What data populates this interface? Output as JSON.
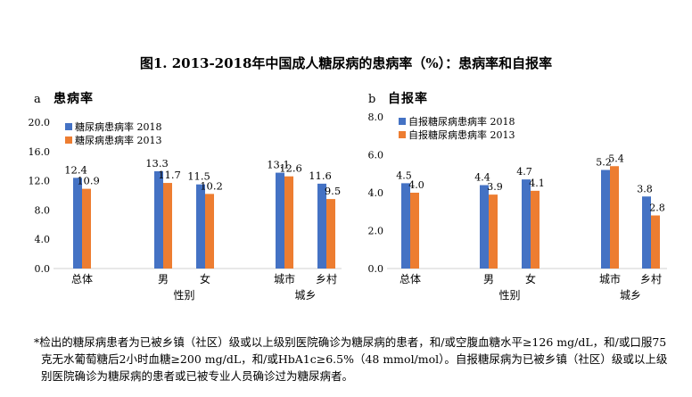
{
  "title": "图1. 2013-2018年中国成人糖尿病的患病率（%）：患病率和自报率",
  "footnote": "*检出的糖尿病患者为已被乡镇（社区）级或以上级别医院确诊为糖尿病的患者，和/或空腹血糖水平≥126 mg/dL，和/或口服75克无水葡萄糖后2小时血糖≥200 mg/dL，和/或HbA1c≥6.5%（48 mmol/mol）。自报糖尿病为已被乡镇（社区）级或以上级别医院确诊为糖尿病的患者或已被专业人员确诊过为糖尿病者。",
  "colors": {
    "series_2018": "#4472C4",
    "series_2013": "#ED7D31"
  },
  "chart_data": [
    {
      "panel": "a",
      "panel_title": "患病率",
      "type": "bar",
      "categories": [
        "总体",
        "男",
        "女",
        "城市",
        "乡村"
      ],
      "groups": [
        {
          "label": "",
          "categories": [
            "总体"
          ]
        },
        {
          "label": "性别",
          "categories": [
            "男",
            "女"
          ]
        },
        {
          "label": "城乡",
          "categories": [
            "城市",
            "乡村"
          ]
        }
      ],
      "series": [
        {
          "name": "糖尿病患病率 2018",
          "values": [
            12.4,
            13.3,
            11.5,
            13.1,
            11.6
          ]
        },
        {
          "name": "糖尿病患病率 2013",
          "values": [
            10.9,
            11.7,
            10.2,
            12.6,
            9.5
          ]
        }
      ],
      "y_ticks": [
        "0.0",
        "4.0",
        "8.0",
        "12.0",
        "16.0",
        "20.0"
      ],
      "ylim": [
        0,
        20
      ],
      "legend": "top-left"
    },
    {
      "panel": "b",
      "panel_title": "自报率",
      "type": "bar",
      "categories": [
        "总体",
        "男",
        "女",
        "城市",
        "乡村"
      ],
      "groups": [
        {
          "label": "",
          "categories": [
            "总体"
          ]
        },
        {
          "label": "性别",
          "categories": [
            "男",
            "女"
          ]
        },
        {
          "label": "城乡",
          "categories": [
            "城市",
            "乡村"
          ]
        }
      ],
      "series": [
        {
          "name": "自报糖尿病患病率 2018",
          "values": [
            4.5,
            4.4,
            4.7,
            5.2,
            3.8
          ]
        },
        {
          "name": "自报糖尿病患病率 2013",
          "values": [
            4.0,
            3.9,
            4.1,
            5.4,
            2.8
          ]
        }
      ],
      "y_ticks": [
        "0.0",
        "2.0",
        "4.0",
        "6.0",
        "8.0"
      ],
      "ylim": [
        0,
        8
      ],
      "legend": "top-left"
    }
  ]
}
